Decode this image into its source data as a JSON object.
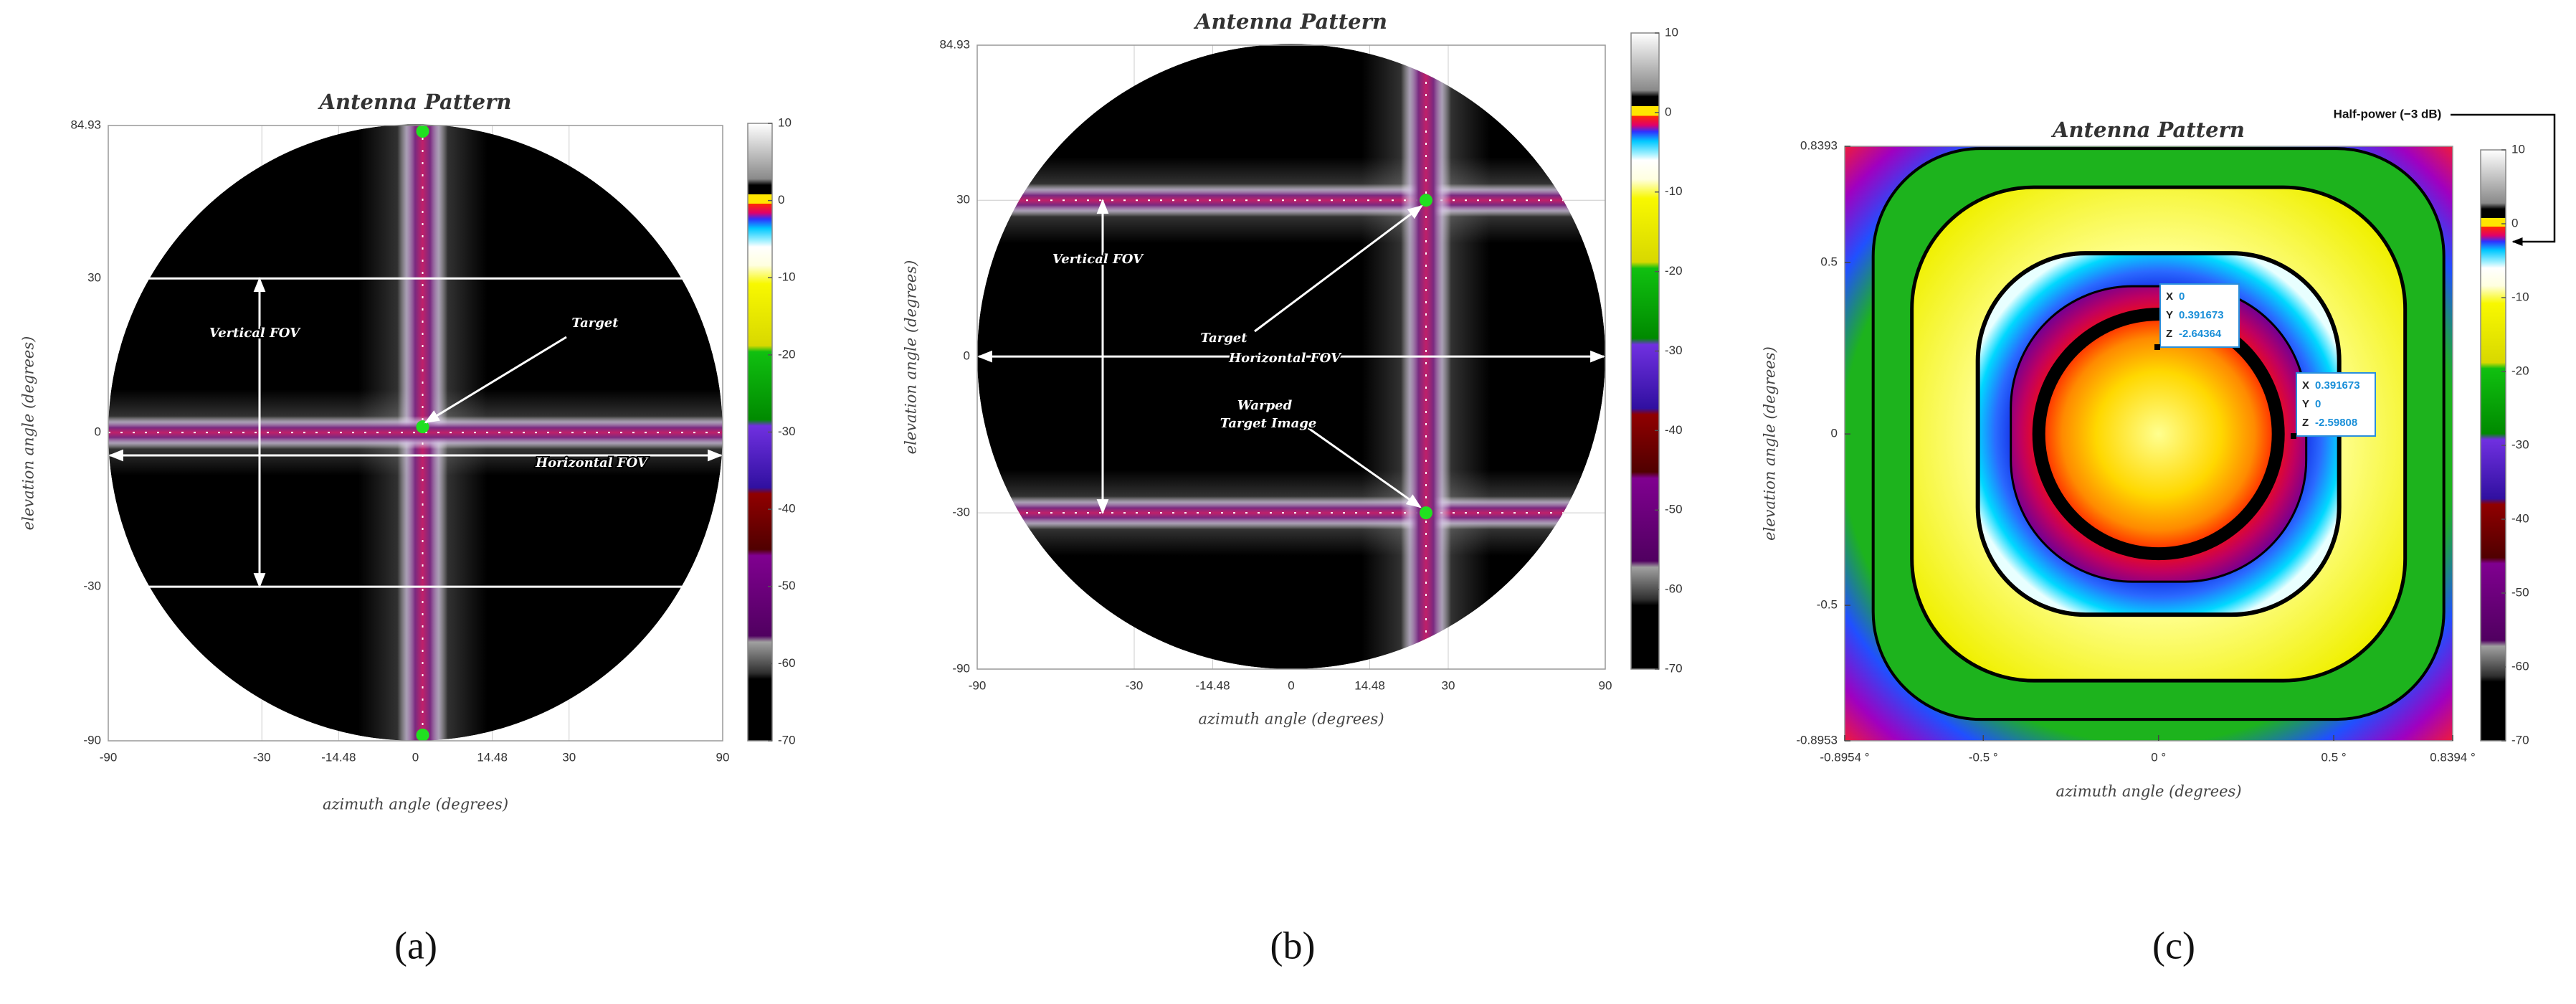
{
  "chart_data": [
    {
      "type": "heatmap",
      "title": "Antenna Pattern",
      "x_label": "azimuth angle (degrees)",
      "y_label": "elevation angle (degrees)",
      "scale": "sine",
      "xlim": [
        -90,
        90
      ],
      "ylim": [
        -90,
        84.93
      ],
      "xticks": [
        -90,
        -30,
        -14.48,
        0,
        14.48,
        30,
        90
      ],
      "yticks": [
        -90,
        -30,
        0,
        30,
        84.93
      ],
      "clim": [
        -70,
        10
      ],
      "cticks": [
        10,
        0,
        -10,
        -20,
        -30,
        -40,
        -50,
        -60,
        -70
      ],
      "grid": true,
      "annotations": [
        "Vertical FOV",
        "Target",
        "Horizontal FOV"
      ]
    },
    {
      "type": "heatmap",
      "title": "Antenna Pattern",
      "x_label": "azimuth angle (degrees)",
      "y_label": "elevation angle (degrees)",
      "scale": "sine",
      "xlim": [
        -90,
        90
      ],
      "ylim": [
        -90,
        84.93
      ],
      "xticks": [
        -90,
        -30,
        -14.48,
        0,
        14.48,
        30,
        90
      ],
      "yticks": [
        -90,
        -30,
        0,
        30,
        84.93
      ],
      "clim": [
        -70,
        10
      ],
      "cticks": [
        10,
        0,
        -10,
        -20,
        -30,
        -40,
        -50,
        -60,
        -70
      ],
      "grid": true,
      "annotations": [
        "Vertical FOV",
        "Target",
        "Horizontal FOV",
        "Warped",
        "Target Image"
      ]
    },
    {
      "type": "heatmap",
      "title": "Antenna Pattern",
      "x_label": "azimuth angle (degrees)",
      "y_label": "elevation angle (degrees)",
      "scale": "linear",
      "xlim": [
        -0.8954,
        0.8394
      ],
      "ylim": [
        -0.8953,
        0.8393
      ],
      "xticks": [
        {
          "value": -0.8954,
          "label": "-0.8954 °"
        },
        {
          "value": -0.5,
          "label": "-0.5 °"
        },
        {
          "value": 0,
          "label": "0 °"
        },
        {
          "value": 0.5,
          "label": "0.5 °"
        },
        {
          "value": 0.8394,
          "label": "0.8394 °"
        }
      ],
      "yticks": [
        -0.8953,
        -0.5,
        0,
        0.5,
        0.8393
      ],
      "clim": [
        -70,
        10
      ],
      "cticks": [
        10,
        0,
        -10,
        -20,
        -30,
        -40,
        -50,
        -60,
        -70
      ],
      "grid": false,
      "datatips": [
        {
          "rows": [
            {
              "label": "X",
              "value": 0
            },
            {
              "label": "Y",
              "value": 0.391673
            },
            {
              "label": "Z",
              "value": -2.64364
            }
          ]
        },
        {
          "rows": [
            {
              "label": "X",
              "value": 0.391673
            },
            {
              "label": "Y",
              "value": 0
            },
            {
              "label": "Z",
              "value": -2.59808
            }
          ]
        }
      ],
      "annotation": "Half-power (−3 dB)"
    }
  ],
  "captions": [
    "(a)",
    "(b)",
    "(c)"
  ]
}
